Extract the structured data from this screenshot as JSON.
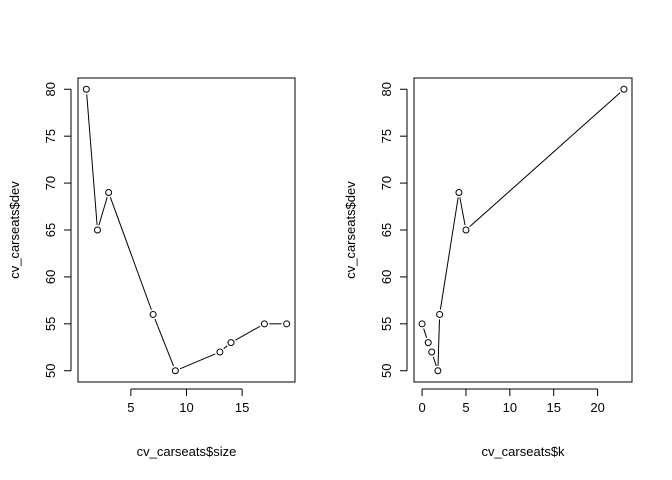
{
  "chart_data": [
    {
      "type": "line",
      "subtype": "both",
      "xlabel": "cv_carseats$size",
      "ylabel": "cv_carseats$dev",
      "xlim": [
        0.25,
        19.75
      ],
      "ylim": [
        48.8,
        81.2
      ],
      "xticks": [
        "5",
        "10",
        "15"
      ],
      "xtick_values": [
        5,
        10,
        15
      ],
      "yticks": [
        "50",
        "55",
        "60",
        "65",
        "70",
        "75",
        "80"
      ],
      "ytick_values": [
        50,
        55,
        60,
        65,
        70,
        75,
        80
      ],
      "x": [
        1,
        2,
        3,
        7,
        9,
        13,
        14,
        17,
        19
      ],
      "y": [
        80,
        65,
        69,
        56,
        50,
        52,
        53,
        55,
        55
      ]
    },
    {
      "type": "line",
      "subtype": "both",
      "xlabel": "cv_carseats$k",
      "ylabel": "cv_carseats$dev",
      "xlim": [
        -0.92,
        23.92
      ],
      "ylim": [
        48.8,
        81.2
      ],
      "xticks": [
        "0",
        "5",
        "10",
        "15",
        "20"
      ],
      "xtick_values": [
        0,
        5,
        10,
        15,
        20
      ],
      "yticks": [
        "50",
        "55",
        "60",
        "65",
        "70",
        "75",
        "80"
      ],
      "ytick_values": [
        50,
        55,
        60,
        65,
        70,
        75,
        80
      ],
      "x": [
        23,
        5,
        4.2,
        2,
        1.8,
        1.1,
        0.7,
        0
      ],
      "y": [
        80,
        65,
        69,
        56,
        50,
        52,
        53,
        55
      ]
    }
  ]
}
